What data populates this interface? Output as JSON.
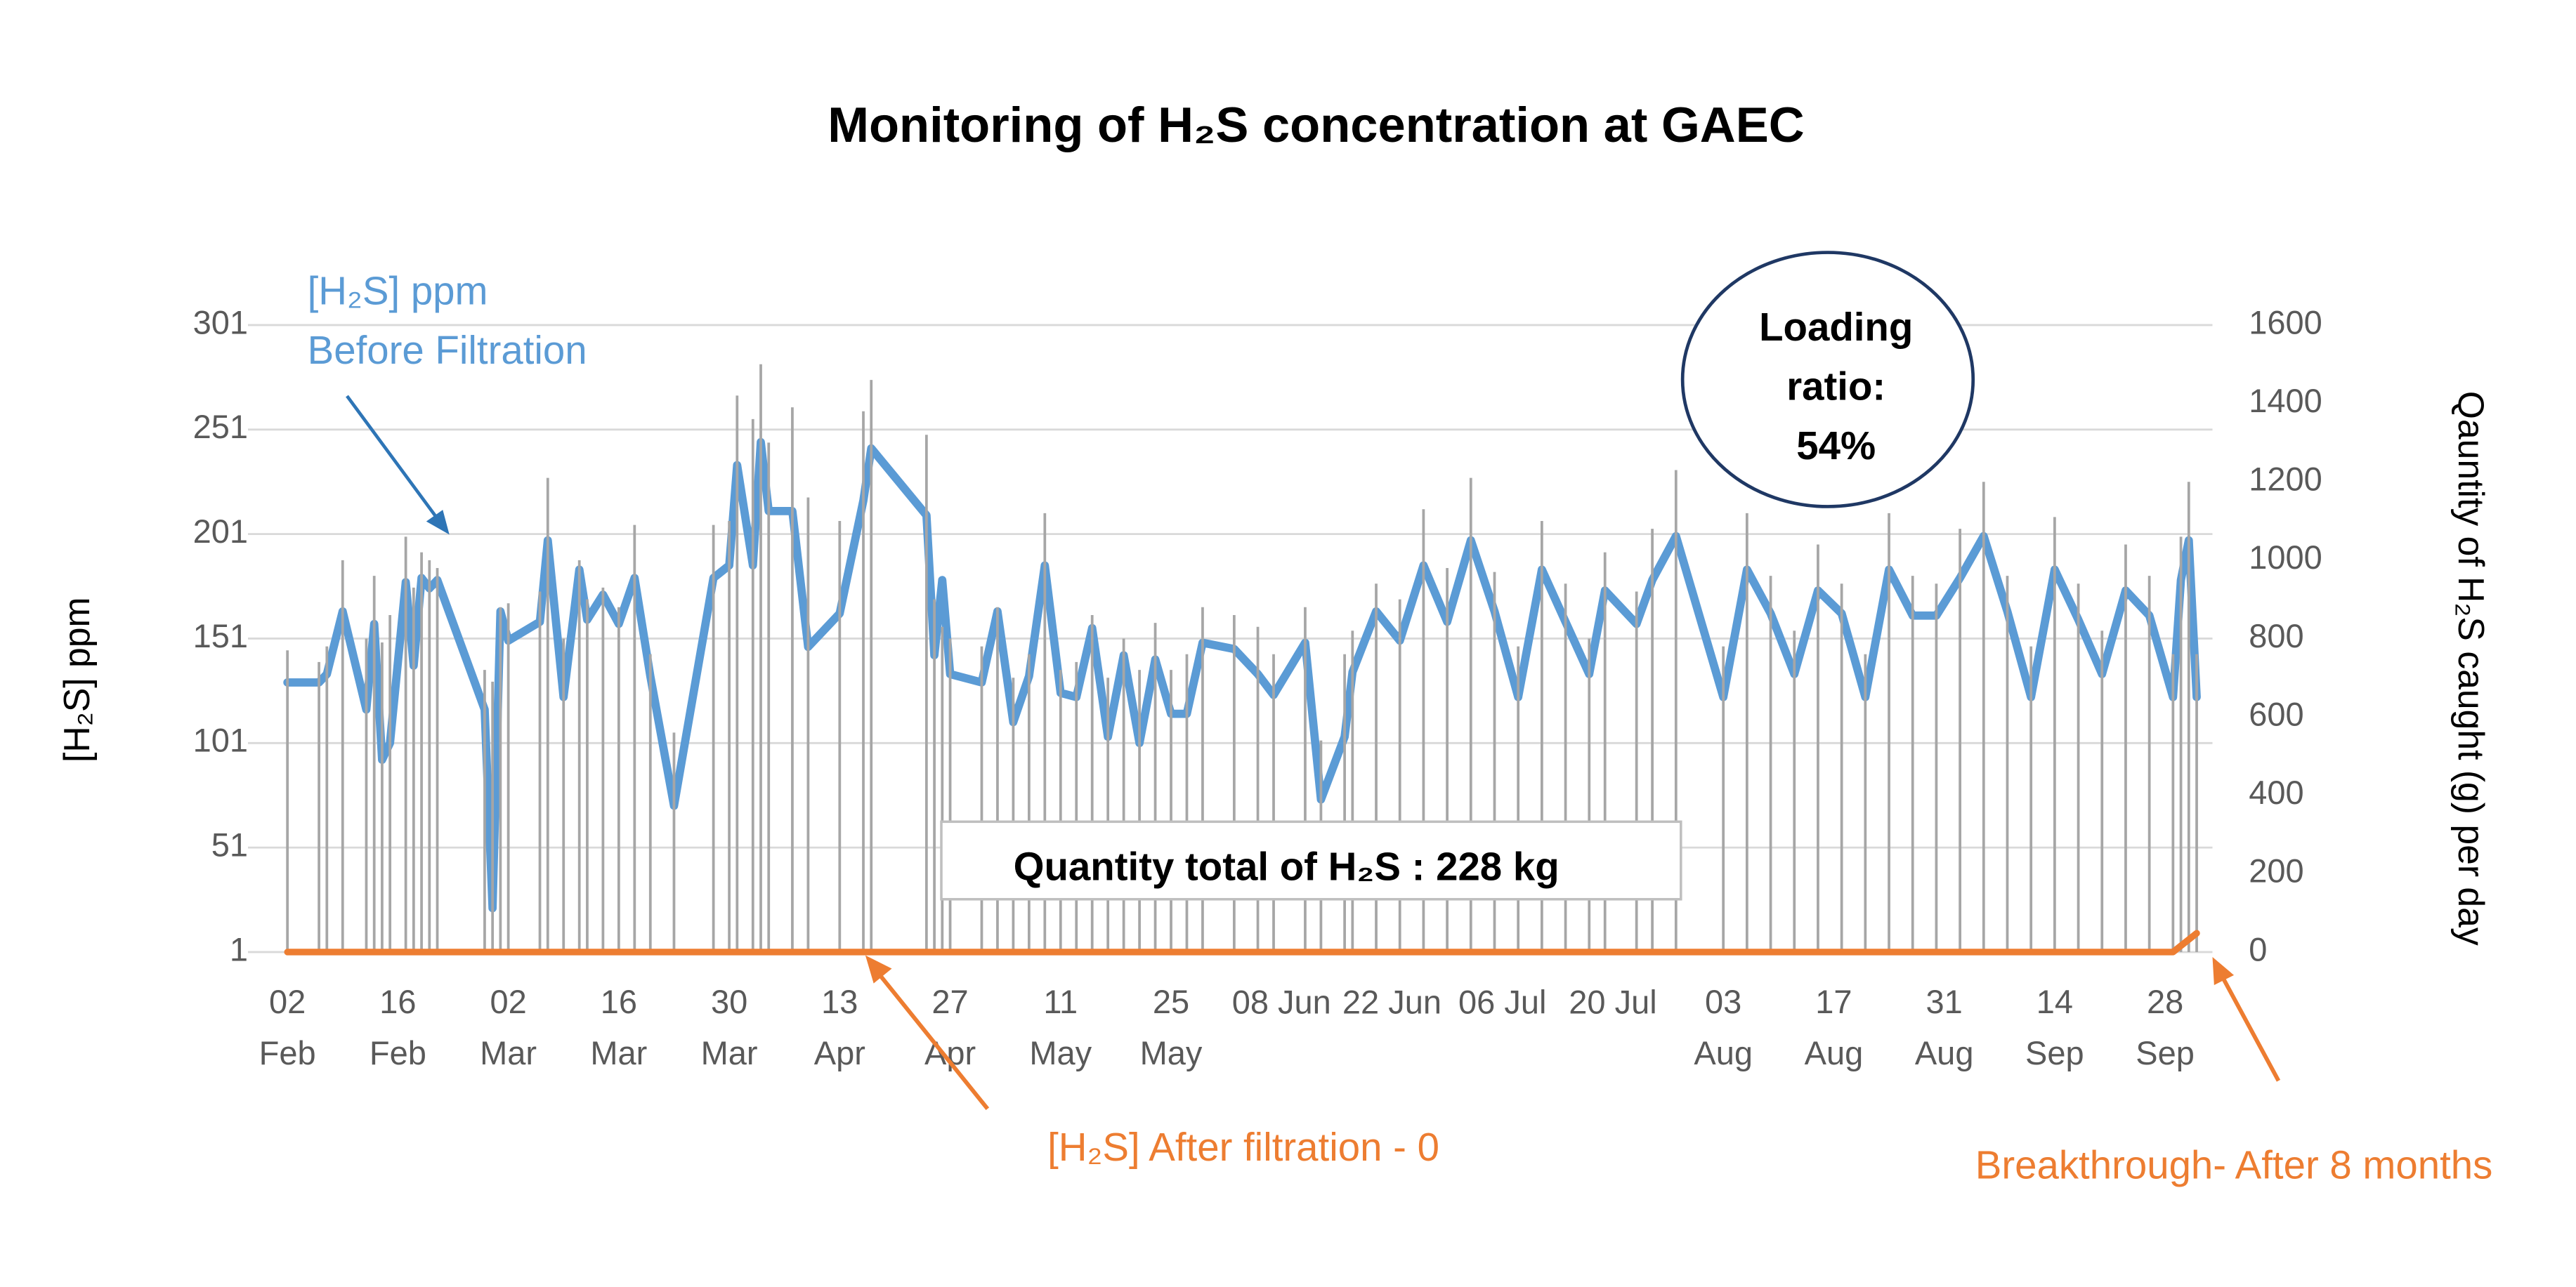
{
  "chart_data": {
    "type": "line",
    "title": "Monitoring of H₂S concentration at GAEC",
    "y_label": "[H₂S] ppm",
    "y2_label": "Qauntity of H₂S caught (g) per day",
    "grid": true,
    "xlim": [
      "01-28",
      "10-04"
    ],
    "xticks": [
      {
        "value": "02-02",
        "label": "02\nFeb"
      },
      {
        "value": "02-16",
        "label": "16\nFeb"
      },
      {
        "value": "03-02",
        "label": "02\nMar"
      },
      {
        "value": "03-16",
        "label": "16\nMar"
      },
      {
        "value": "03-30",
        "label": "30\nMar"
      },
      {
        "value": "04-13",
        "label": "13\nApr"
      },
      {
        "value": "04-27",
        "label": "27\nApr"
      },
      {
        "value": "05-11",
        "label": "11\nMay"
      },
      {
        "value": "05-25",
        "label": "25\nMay"
      },
      {
        "value": "06-08",
        "label": "08 Jun"
      },
      {
        "value": "06-22",
        "label": "22 Jun"
      },
      {
        "value": "07-06",
        "label": "06 Jul"
      },
      {
        "value": "07-20",
        "label": "20 Jul"
      },
      {
        "value": "08-03",
        "label": "03\nAug"
      },
      {
        "value": "08-17",
        "label": "17\nAug"
      },
      {
        "value": "08-31",
        "label": "31\nAug"
      },
      {
        "value": "09-14",
        "label": "14\nSep"
      },
      {
        "value": "09-28",
        "label": "28\nSep"
      }
    ],
    "ylim": [
      1,
      301
    ],
    "yticks": [
      1,
      51,
      101,
      151,
      201,
      251,
      301
    ],
    "y2lim": [
      0,
      1600
    ],
    "y2ticks": [
      0,
      200,
      400,
      600,
      800,
      1000,
      1200,
      1400,
      1600
    ],
    "x": [
      "02-02",
      "02-06",
      "02-07",
      "02-09",
      "02-12",
      "02-13",
      "02-14",
      "02-15",
      "02-17",
      "02-18",
      "02-19",
      "02-20",
      "02-21",
      "02-27",
      "02-28",
      "03-01",
      "03-02",
      "03-06",
      "03-07",
      "03-09",
      "03-11",
      "03-12",
      "03-14",
      "03-16",
      "03-18",
      "03-20",
      "03-23",
      "03-28",
      "03-30",
      "03-31",
      "04-02",
      "04-03",
      "04-04",
      "04-07",
      "04-09",
      "04-13",
      "04-16",
      "04-17",
      "04-24",
      "04-25",
      "04-26",
      "04-27",
      "05-01",
      "05-03",
      "05-05",
      "05-07",
      "05-09",
      "05-11",
      "05-13",
      "05-15",
      "05-17",
      "05-19",
      "05-21",
      "05-23",
      "05-25",
      "05-27",
      "05-29",
      "06-02",
      "06-05",
      "06-07",
      "06-11",
      "06-13",
      "06-16",
      "06-17",
      "06-20",
      "06-23",
      "06-26",
      "06-29",
      "07-02",
      "07-05",
      "07-08",
      "07-11",
      "07-14",
      "07-17",
      "07-19",
      "07-23",
      "07-25",
      "07-28",
      "08-03",
      "08-06",
      "08-09",
      "08-12",
      "08-15",
      "08-18",
      "08-21",
      "08-24",
      "08-27",
      "08-30",
      "09-02",
      "09-05",
      "09-08",
      "09-11",
      "09-14",
      "09-17",
      "09-20",
      "09-23",
      "09-26",
      "09-29",
      "09-30",
      "10-01",
      "10-02"
    ],
    "series": [
      {
        "name": "[H₂S] ppm\nBefore Filtration",
        "color": "#5b9bd5",
        "values": [
          130,
          130,
          134,
          164,
          117,
          158,
          93,
          101,
          178,
          138,
          180,
          175,
          179,
          117,
          22,
          164,
          150,
          159,
          198,
          123,
          184,
          160,
          172,
          158,
          180,
          133,
          71,
          180,
          186,
          234,
          186,
          245,
          212,
          212,
          147,
          163,
          217,
          242,
          210,
          143,
          179,
          134,
          130,
          164,
          111,
          133,
          186,
          125,
          123,
          156,
          104,
          143,
          101,
          141,
          115,
          115,
          149,
          146,
          134,
          124,
          149,
          74,
          104,
          135,
          164,
          150,
          186,
          159,
          198,
          164,
          123,
          184,
          159,
          134,
          174,
          158,
          179,
          200,
          123,
          184,
          163,
          134,
          174,
          163,
          123,
          184,
          162,
          162,
          180,
          200,
          164,
          123,
          184,
          160,
          134,
          174,
          162,
          123,
          179,
          198,
          123
        ]
      },
      {
        "type": "bar",
        "axis": "y2",
        "color": "#a6a6a6",
        "values": [
          770,
          740,
          780,
          1000,
          800,
          960,
          790,
          860,
          1060,
          930,
          1020,
          1000,
          980,
          720,
          690,
          880,
          890,
          920,
          1210,
          800,
          1000,
          900,
          930,
          880,
          1090,
          760,
          560,
          1090,
          1100,
          1420,
          1360,
          1500,
          1300,
          1390,
          1160,
          1100,
          1380,
          1460,
          1320,
          900,
          830,
          800,
          780,
          880,
          700,
          760,
          1120,
          720,
          740,
          860,
          700,
          800,
          720,
          840,
          720,
          760,
          880,
          860,
          830,
          760,
          880,
          540,
          760,
          820,
          940,
          900,
          1130,
          980,
          1210,
          970,
          780,
          1100,
          940,
          800,
          1020,
          920,
          1080,
          1230,
          780,
          1120,
          960,
          820,
          1040,
          940,
          760,
          1120,
          960,
          940,
          1080,
          1200,
          960,
          780,
          1110,
          940,
          820,
          1040,
          960,
          760,
          1060,
          1200,
          760
        ]
      },
      {
        "name": "[H₂S] After filtration - 0",
        "color": "#ed7d31",
        "x": [
          "02-02",
          "02-06",
          "02-07",
          "09-29",
          "10-02"
        ],
        "values": [
          1,
          1,
          1,
          1,
          10
        ]
      }
    ],
    "annotations": [
      "Loading\nratio:\n54%",
      "Quantity total of H₂S  :  228 kg",
      "Breakthrough- After 8 months"
    ]
  }
}
